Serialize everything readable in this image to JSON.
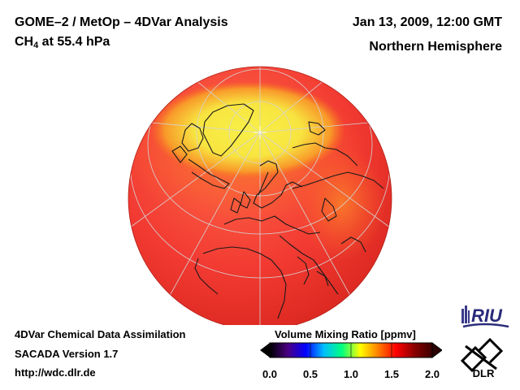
{
  "title": {
    "line1": "GOME–2 / MetOp – 4DVar Analysis",
    "species_main": "CH",
    "species_sub": "4",
    "species_rest": " at 55.4 hPa"
  },
  "date": "Jan 13, 2009, 12:00 GMT",
  "region": "Northern Hemisphere",
  "footer": {
    "line1": "4DVar Chemical Data Assimilation",
    "line2": "SACADA Version 1.7",
    "line3": "http://wdc.dlr.de"
  },
  "colorbar": {
    "title": "Volume Mixing Ratio [ppmv]",
    "min": 0.0,
    "max": 2.0,
    "ticks": [
      "0.0",
      "0.5",
      "1.0",
      "1.5",
      "2.0"
    ],
    "tick_values": [
      0.0,
      0.5,
      1.0,
      1.5,
      2.0
    ],
    "colors": [
      "#000000",
      "#4b0082",
      "#0000ff",
      "#00bfff",
      "#00ff7f",
      "#ffff00",
      "#ff7f00",
      "#ff0000",
      "#8b0000",
      "#3b0000"
    ]
  },
  "logos": {
    "riu": "RIU",
    "dlr": "DLR"
  },
  "colors": {
    "globe_red": "#f23a32",
    "globe_orange": "#f8731f",
    "globe_yellow": "#f8f048",
    "coastline": "#1a1a1a",
    "graticule": "#d0d0d0"
  }
}
